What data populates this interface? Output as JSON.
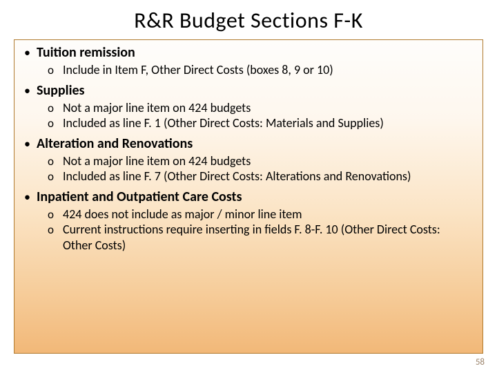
{
  "title": "R&R Budget Sections F-K",
  "title_fontsize": 32,
  "title_color": "#000000",
  "background_color": "#ffffff",
  "content_box": {
    "border_color": "#b07a2e",
    "gradient_stops": [
      "#fefdfb",
      "#fef7ee",
      "#fbe4c5",
      "#f6cd9b",
      "#f2b878"
    ]
  },
  "top_bullet_char": "•",
  "sub_bullet_char": "o",
  "top_label_fontsize": 20,
  "top_label_fontweight": 700,
  "sub_text_fontsize": 18,
  "items": [
    {
      "label": "Tuition remission",
      "subs": [
        "Include in Item F, Other Direct Costs (boxes 8, 9 or 10)"
      ]
    },
    {
      "label": "Supplies",
      "subs": [
        "Not a major line item on 424 budgets",
        "Included as line F. 1 (Other Direct Costs: Materials and Supplies)"
      ]
    },
    {
      "label": "Alteration and Renovations",
      "subs": [
        "Not a major line item on 424 budgets",
        "Included as line F. 7 (Other Direct Costs: Alterations and Renovations)"
      ]
    },
    {
      "label": "Inpatient and Outpatient Care Costs",
      "subs": [
        "424 does not include as major / minor line item",
        "Current instructions require inserting in fields F. 8-F. 10 (Other Direct Costs: Other Costs)"
      ]
    }
  ],
  "page_number": "58",
  "page_number_color": "#9a826a",
  "page_number_fontsize": 13
}
